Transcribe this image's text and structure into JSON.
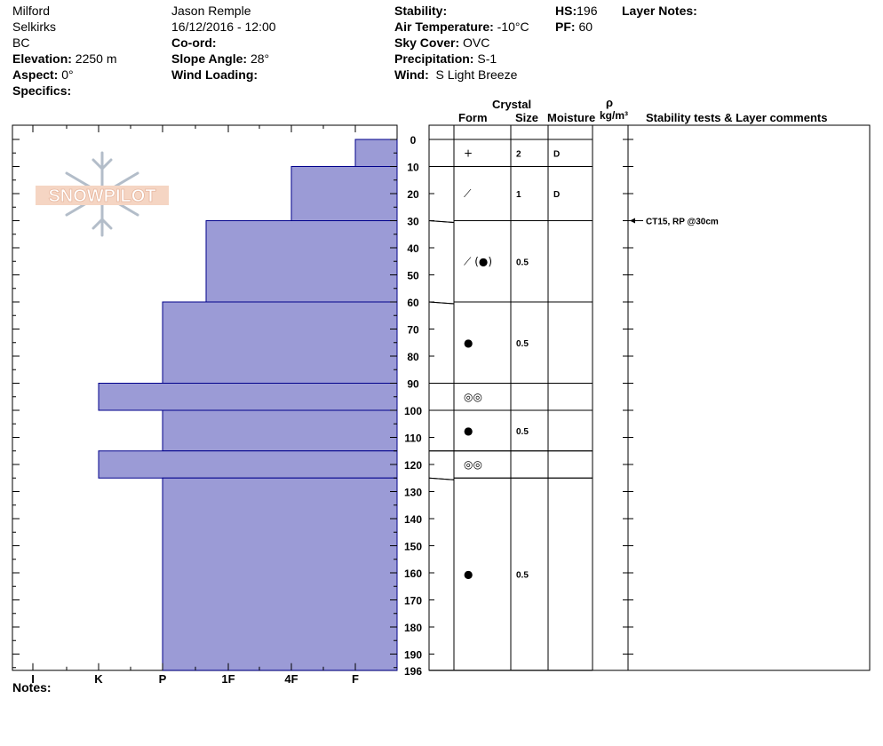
{
  "header": {
    "location": "Milford",
    "range": "Selkirks",
    "state": "BC",
    "elevation_label": "Elevation:",
    "elevation_value": "2250 m",
    "aspect_label": "Aspect:",
    "aspect_value": "0°",
    "specifics_label": "Specifics:",
    "observer": "Jason Remple",
    "datetime": "16/12/2016 - 12:00",
    "coord_label": "Co-ord:",
    "slope_label": "Slope Angle:",
    "slope_value": "28°",
    "wind_loading_label": "Wind Loading:",
    "stability_label": "Stability:",
    "air_temp_label": "Air Temperature:",
    "air_temp_value": "-10°C",
    "sky_label": "Sky Cover:",
    "sky_value": "OVC",
    "precip_label": "Precipitation:",
    "precip_value": "S-1",
    "wind_label": "Wind:",
    "wind_value": "S Light Breeze",
    "hs_label": "HS:",
    "hs_value": "196",
    "pf_label": "PF:",
    "pf_value": "60",
    "layer_notes_label": "Layer Notes:"
  },
  "logo_text": "SNOWPILOT",
  "notes_label": "Notes:",
  "table_headers": {
    "crystal": "Crystal",
    "form": "Form",
    "size": "Size",
    "moisture": "Moisture",
    "rho": "ρ",
    "density_unit": "kg/m³",
    "stability": "Stability tests & Layer comments"
  },
  "stability_comment": "CT15, RP @30cm",
  "colors": {
    "layer_fill": "#9b9bd6",
    "layer_stroke": "#00008b"
  },
  "chart_data": {
    "type": "bar",
    "orientation": "horizontal",
    "hardness_categories": [
      "I",
      "K",
      "P",
      "1F",
      "4F",
      "F"
    ],
    "depth_ticks": [
      0,
      10,
      20,
      30,
      40,
      50,
      60,
      70,
      80,
      90,
      100,
      110,
      120,
      130,
      140,
      150,
      160,
      170,
      180,
      190,
      196
    ],
    "depth_range": [
      0,
      196
    ],
    "depth_unit": "cm",
    "layers": [
      {
        "top": 0,
        "bottom": 10,
        "hardness": "F",
        "form": "+",
        "size": "2",
        "moisture": "D"
      },
      {
        "top": 10,
        "bottom": 30,
        "hardness": "4F",
        "form": "⟋",
        "size": "1",
        "moisture": "D"
      },
      {
        "top": 30,
        "bottom": 60,
        "hardness": "1F-",
        "form": "⟋ (●)",
        "size": "0.5",
        "moisture": ""
      },
      {
        "top": 60,
        "bottom": 90,
        "hardness": "P",
        "form": "●",
        "size": "0.5",
        "moisture": ""
      },
      {
        "top": 90,
        "bottom": 100,
        "hardness": "K",
        "form": "◎◎",
        "size": "",
        "moisture": ""
      },
      {
        "top": 100,
        "bottom": 115,
        "hardness": "P",
        "form": "●",
        "size": "0.5",
        "moisture": ""
      },
      {
        "top": 115,
        "bottom": 125,
        "hardness": "K",
        "form": "◎◎",
        "size": "",
        "moisture": ""
      },
      {
        "top": 125,
        "bottom": 196,
        "hardness": "P",
        "form": "●",
        "size": "0.5",
        "moisture": ""
      }
    ],
    "stability_tests": [
      {
        "depth": 30,
        "label": "CT15, RP @30cm"
      }
    ]
  }
}
